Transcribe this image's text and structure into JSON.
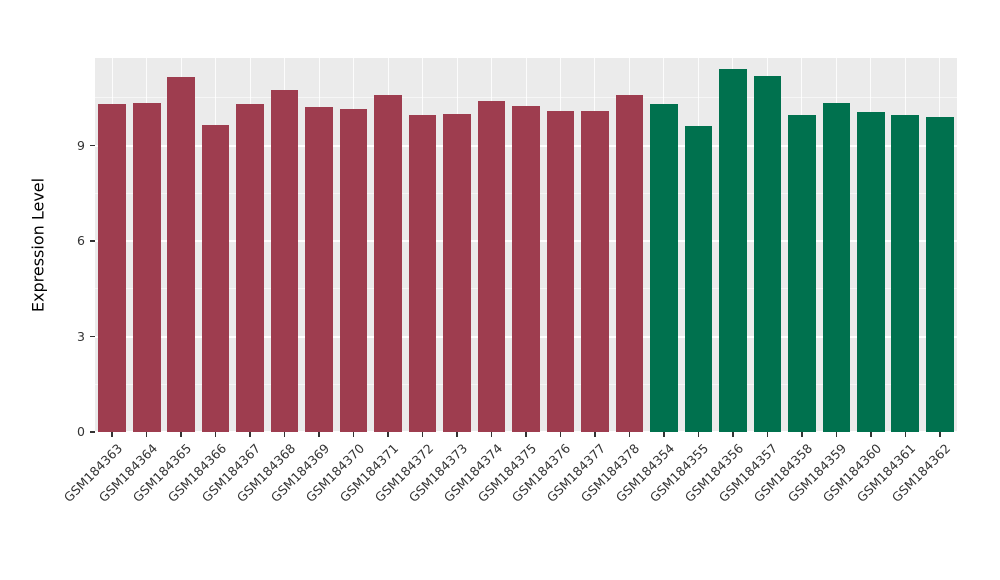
{
  "chart_data": {
    "type": "bar",
    "title": "",
    "xlabel": "",
    "ylabel": "Expression Level",
    "ylim": [
      0,
      11.75
    ],
    "yticks": [
      0,
      3,
      6,
      9
    ],
    "yticks_minor": [
      1.5,
      4.5,
      7.5,
      10.5
    ],
    "grid": true,
    "legend": false,
    "panel_background": "#ebebeb",
    "group_colors": {
      "groupA": "#9e3d4f",
      "groupB": "#00714e"
    },
    "bars": [
      {
        "label": "GSM184363",
        "value": 10.3,
        "group": "groupA"
      },
      {
        "label": "GSM184364",
        "value": 10.35,
        "group": "groupA"
      },
      {
        "label": "GSM184365",
        "value": 11.15,
        "group": "groupA"
      },
      {
        "label": "GSM184366",
        "value": 9.65,
        "group": "groupA"
      },
      {
        "label": "GSM184367",
        "value": 10.3,
        "group": "groupA"
      },
      {
        "label": "GSM184368",
        "value": 10.75,
        "group": "groupA"
      },
      {
        "label": "GSM184369",
        "value": 10.2,
        "group": "groupA"
      },
      {
        "label": "GSM184370",
        "value": 10.15,
        "group": "groupA"
      },
      {
        "label": "GSM184371",
        "value": 10.6,
        "group": "groupA"
      },
      {
        "label": "GSM184372",
        "value": 9.95,
        "group": "groupA"
      },
      {
        "label": "GSM184373",
        "value": 10.0,
        "group": "groupA"
      },
      {
        "label": "GSM184374",
        "value": 10.4,
        "group": "groupA"
      },
      {
        "label": "GSM184375",
        "value": 10.25,
        "group": "groupA"
      },
      {
        "label": "GSM184376",
        "value": 10.1,
        "group": "groupA"
      },
      {
        "label": "GSM184377",
        "value": 10.1,
        "group": "groupA"
      },
      {
        "label": "GSM184378",
        "value": 10.6,
        "group": "groupA"
      },
      {
        "label": "GSM184354",
        "value": 10.3,
        "group": "groupB"
      },
      {
        "label": "GSM184355",
        "value": 9.6,
        "group": "groupB"
      },
      {
        "label": "GSM184356",
        "value": 11.4,
        "group": "groupB"
      },
      {
        "label": "GSM184357",
        "value": 11.2,
        "group": "groupB"
      },
      {
        "label": "GSM184358",
        "value": 9.95,
        "group": "groupB"
      },
      {
        "label": "GSM184359",
        "value": 10.35,
        "group": "groupB"
      },
      {
        "label": "GSM184360",
        "value": 10.05,
        "group": "groupB"
      },
      {
        "label": "GSM184361",
        "value": 9.95,
        "group": "groupB"
      },
      {
        "label": "GSM184362",
        "value": 9.9,
        "group": "groupB"
      }
    ]
  }
}
